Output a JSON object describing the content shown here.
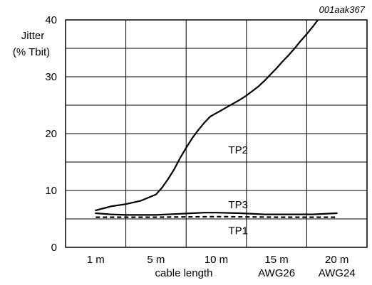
{
  "figure_code": "001aak367",
  "chart_data": {
    "type": "line",
    "title": "",
    "ylabel_lines": [
      "Jitter",
      "(% Tbit)"
    ],
    "xlabel": "cable length",
    "ylim": [
      0,
      40
    ],
    "y_ticks": [
      "0",
      "10",
      "20",
      "30",
      "40"
    ],
    "x_categories": [
      "1 m",
      "5 m",
      "10 m",
      "15 m",
      "20 m"
    ],
    "x_sublabels": [
      "",
      "",
      "",
      "AWG26",
      "AWG24"
    ],
    "grid": true,
    "series": [
      {
        "name": "TP2",
        "style": "solid",
        "x": [
          1,
          2,
          3,
          4,
          5,
          5.5,
          6,
          6.5,
          7,
          7.5,
          8,
          8.5,
          9,
          9.5,
          10,
          10.5,
          11,
          11.5,
          12,
          12.5,
          13,
          13.5,
          14,
          14.5,
          15,
          15.5,
          16,
          16.5,
          17,
          17.5,
          18,
          18.5,
          19,
          19.5,
          20
        ],
        "y": [
          6.5,
          7.2,
          7.6,
          8.2,
          9.3,
          10.5,
          12.0,
          13.7,
          15.7,
          17.5,
          19.2,
          20.6,
          21.9,
          23.0,
          23.6,
          24.2,
          24.8,
          25.4,
          26.0,
          26.7,
          27.5,
          28.3,
          29.3,
          30.4,
          31.5,
          32.7,
          33.8,
          35.0,
          36.3,
          37.5,
          38.8,
          40.2,
          41.5,
          42.8,
          44.0
        ]
      },
      {
        "name": "TP3",
        "style": "solid",
        "x": [
          1,
          2,
          3,
          4,
          5,
          7,
          9,
          10,
          12,
          14,
          16,
          18,
          20
        ],
        "y": [
          6.0,
          5.8,
          5.7,
          5.7,
          5.7,
          5.9,
          6.1,
          6.1,
          6.0,
          5.8,
          5.8,
          5.8,
          6.0
        ]
      },
      {
        "name": "TP1",
        "style": "dashed",
        "x": [
          1,
          5,
          10,
          15,
          20
        ],
        "y": [
          5.3,
          5.3,
          5.4,
          5.3,
          5.3
        ]
      }
    ]
  }
}
